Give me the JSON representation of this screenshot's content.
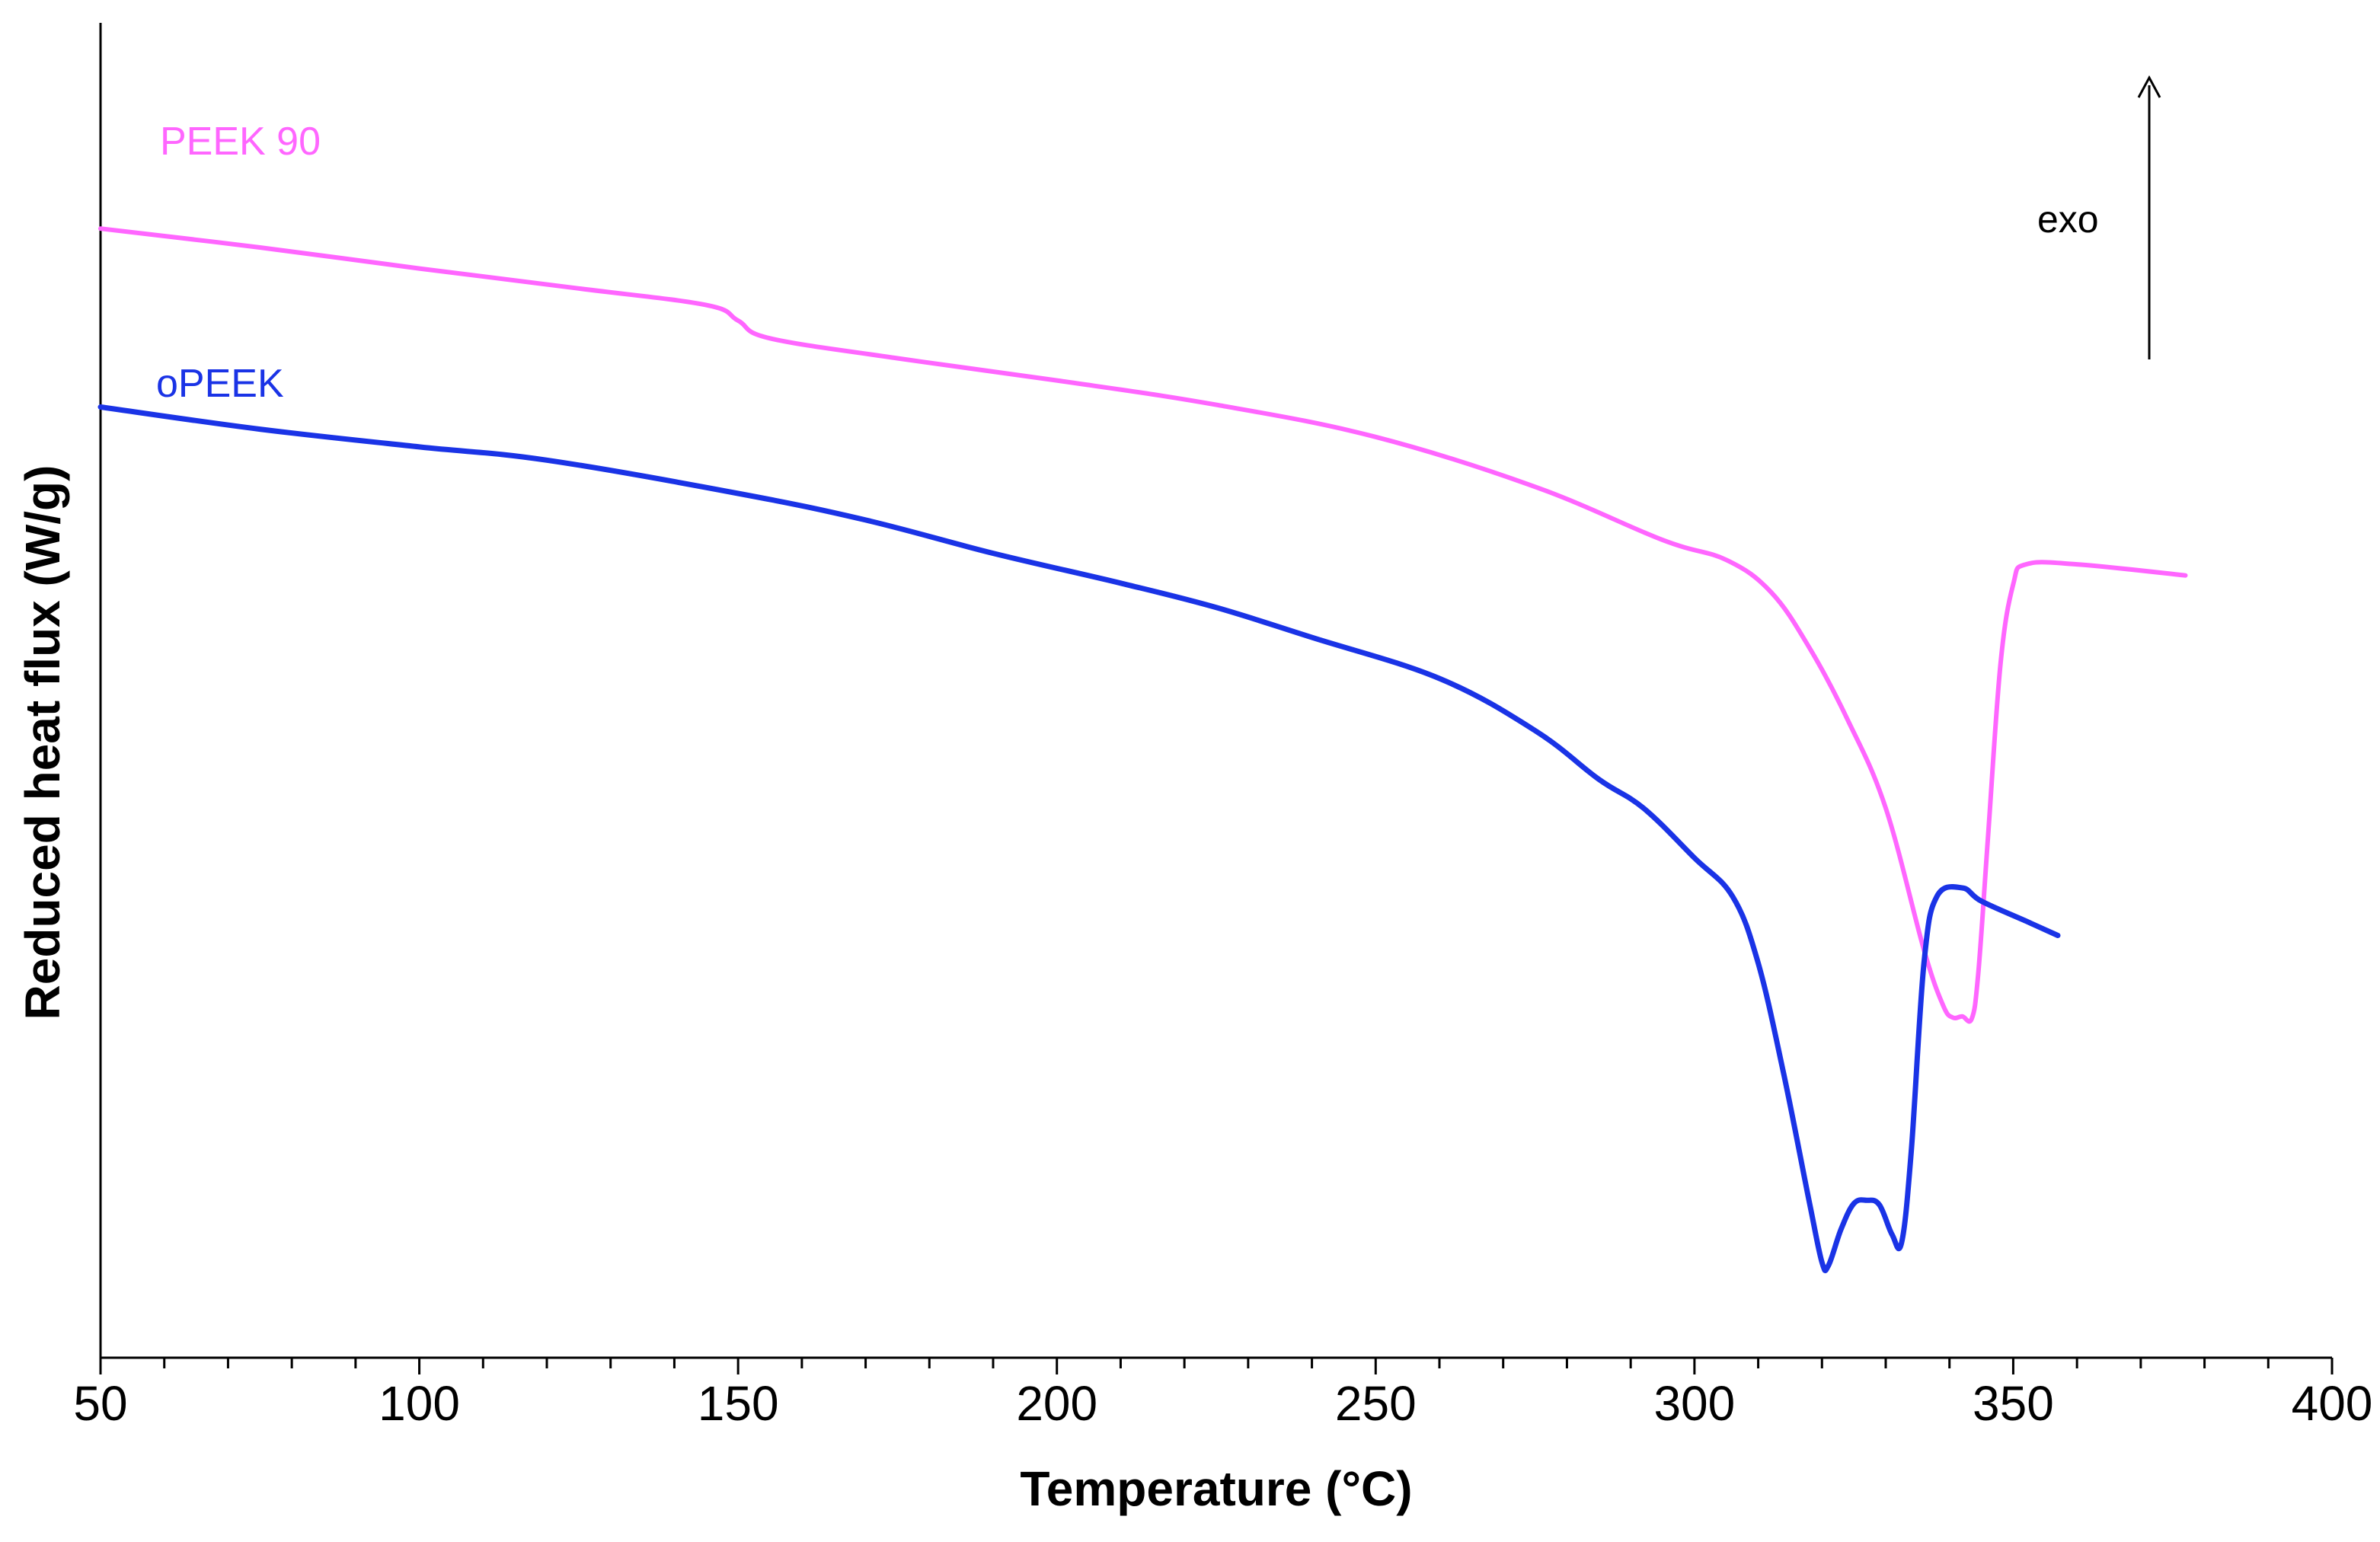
{
  "chart_data": {
    "type": "line",
    "title": "",
    "xlabel": "Temperature (°C)",
    "ylabel": "Reduced heat flux (W/g)",
    "xlim": [
      50,
      400
    ],
    "ylim": [
      0,
      100
    ],
    "x_ticks": [
      50,
      100,
      150,
      200,
      250,
      300,
      350,
      400
    ],
    "x_tick_labels": [
      "50",
      "100",
      "150",
      "200",
      "250",
      "300",
      "350",
      "400"
    ],
    "grid": false,
    "annotation": {
      "text": "exo",
      "arrow": "up"
    },
    "series": [
      {
        "name": "PEEK 90",
        "color": "#ff66ff",
        "points": [
          [
            50,
            88.3
          ],
          [
            75,
            86.6
          ],
          [
            100,
            84.7
          ],
          [
            125,
            82.9
          ],
          [
            145,
            81.4
          ],
          [
            150,
            80.0
          ],
          [
            155,
            78.4
          ],
          [
            175,
            76.6
          ],
          [
            200,
            74.6
          ],
          [
            225,
            72.4
          ],
          [
            250,
            69.5
          ],
          [
            275,
            65.0
          ],
          [
            295,
            60.2
          ],
          [
            305,
            58.4
          ],
          [
            312,
            55.5
          ],
          [
            318,
            50.5
          ],
          [
            324,
            44.0
          ],
          [
            330,
            36.0
          ],
          [
            336,
            23.2
          ],
          [
            339,
            18.2
          ],
          [
            340.5,
            17.1
          ],
          [
            342,
            17.2
          ],
          [
            343.5,
            17.0
          ],
          [
            344.5,
            21.0
          ],
          [
            346,
            33.0
          ],
          [
            348,
            49.0
          ],
          [
            350,
            56.2
          ],
          [
            352,
            58.0
          ],
          [
            360,
            58.0
          ],
          [
            377,
            57.0
          ]
        ]
      },
      {
        "name": "oPEEK",
        "color": "#1a33e6",
        "points": [
          [
            50,
            72.2
          ],
          [
            75,
            70.2
          ],
          [
            100,
            68.6
          ],
          [
            120,
            67.4
          ],
          [
            150,
            64.4
          ],
          [
            170,
            62.0
          ],
          [
            190,
            59.0
          ],
          [
            210,
            56.3
          ],
          [
            225,
            54.1
          ],
          [
            240,
            51.4
          ],
          [
            260,
            47.7
          ],
          [
            275,
            43.0
          ],
          [
            285,
            38.6
          ],
          [
            292,
            36.0
          ],
          [
            300,
            31.5
          ],
          [
            306,
            28.0
          ],
          [
            310,
            22.0
          ],
          [
            314,
            12.0
          ],
          [
            318,
            0.5
          ],
          [
            320,
            -5.0
          ],
          [
            321,
            -5.3
          ],
          [
            323,
            -2.0
          ],
          [
            325,
            0.3
          ],
          [
            327,
            0.6
          ],
          [
            329,
            0.2
          ],
          [
            331,
            -2.5
          ],
          [
            332.5,
            -3.2
          ],
          [
            334,
            5.0
          ],
          [
            336,
            22.0
          ],
          [
            338,
            28.0
          ],
          [
            342,
            28.8
          ],
          [
            345,
            27.6
          ],
          [
            352,
            25.8
          ],
          [
            357,
            24.5
          ]
        ]
      }
    ]
  }
}
